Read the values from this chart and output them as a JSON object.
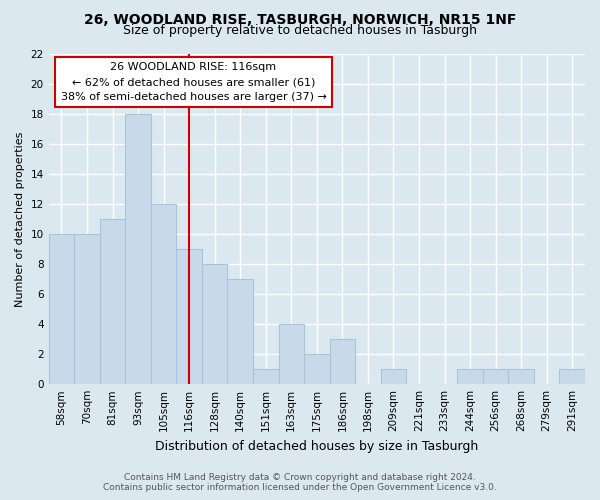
{
  "title": "26, WOODLAND RISE, TASBURGH, NORWICH, NR15 1NF",
  "subtitle": "Size of property relative to detached houses in Tasburgh",
  "xlabel": "Distribution of detached houses by size in Tasburgh",
  "ylabel": "Number of detached properties",
  "bar_labels": [
    "58sqm",
    "70sqm",
    "81sqm",
    "93sqm",
    "105sqm",
    "116sqm",
    "128sqm",
    "140sqm",
    "151sqm",
    "163sqm",
    "175sqm",
    "186sqm",
    "198sqm",
    "209sqm",
    "221sqm",
    "233sqm",
    "244sqm",
    "256sqm",
    "268sqm",
    "279sqm",
    "291sqm"
  ],
  "bar_values": [
    10,
    10,
    11,
    18,
    12,
    9,
    8,
    7,
    1,
    4,
    2,
    3,
    0,
    1,
    0,
    0,
    1,
    1,
    1,
    0,
    1
  ],
  "bar_color": "#c8daea",
  "bar_edge_color": "#a8c4d8",
  "highlight_index": 5,
  "highlight_line_color": "#cc0000",
  "ylim": [
    0,
    22
  ],
  "yticks": [
    0,
    2,
    4,
    6,
    8,
    10,
    12,
    14,
    16,
    18,
    20,
    22
  ],
  "annotation_title": "26 WOODLAND RISE: 116sqm",
  "annotation_line1": "← 62% of detached houses are smaller (61)",
  "annotation_line2": "38% of semi-detached houses are larger (37) →",
  "annotation_box_color": "#ffffff",
  "annotation_box_edge": "#cc0000",
  "footer1": "Contains HM Land Registry data © Crown copyright and database right 2024.",
  "footer2": "Contains public sector information licensed under the Open Government Licence v3.0.",
  "bg_color": "#dce8f0",
  "grid_color": "#ffffff",
  "tick_label_fontsize": 7.5,
  "ylabel_fontsize": 8,
  "xlabel_fontsize": 9,
  "title_fontsize": 10,
  "subtitle_fontsize": 9
}
